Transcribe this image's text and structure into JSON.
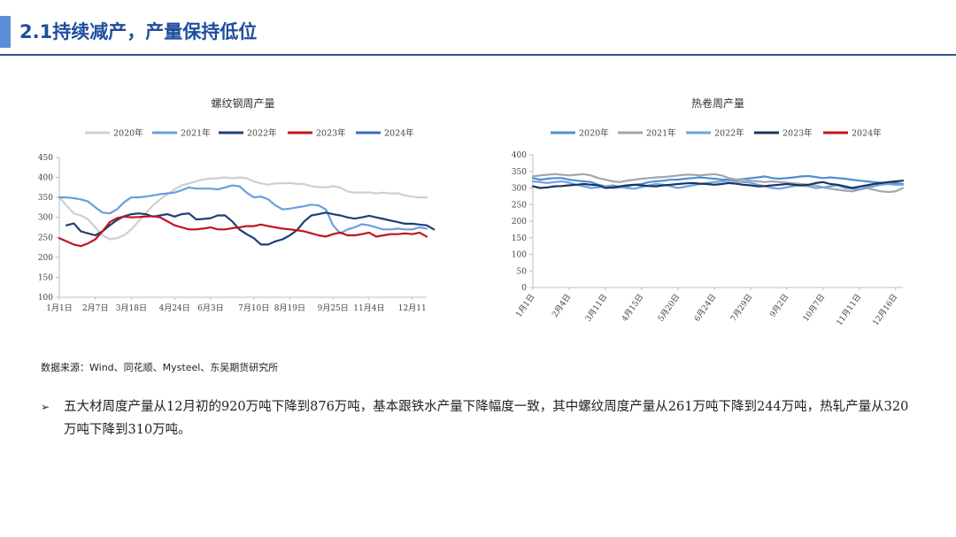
{
  "slide": {
    "title": "2.1持续减产，产量保持低位",
    "source": "数据来源：Wind、同花顺、Mysteel、东吴期货研究所",
    "bullet_mark": "➢",
    "bullet": "五大材周度产量从12月初的920万吨下降到876万吨，基本跟铁水产量下降幅度一致，其中螺纹周度产量从261万吨下降到244万吨，热轧产量从320万吨下降到310万吨。"
  },
  "chart_data": [
    {
      "type": "line",
      "title": "螺纹钢周产量",
      "xlabel": "",
      "ylabel": "",
      "ylim": [
        100,
        450
      ],
      "yticks": [
        100,
        150,
        200,
        250,
        300,
        350,
        400,
        450
      ],
      "xlim": [
        1,
        52
      ],
      "x_ticks": [
        {
          "label": "1月1日",
          "week": 1
        },
        {
          "label": "2月7日",
          "week": 6
        },
        {
          "label": "3月18日",
          "week": 11
        },
        {
          "label": "4月24日",
          "week": 17
        },
        {
          "label": "6月3日",
          "week": 22
        },
        {
          "label": "7月10日",
          "week": 28
        },
        {
          "label": "8月19日",
          "week": 33
        },
        {
          "label": "9月25日",
          "week": 39
        },
        {
          "label": "11月4日",
          "week": 44
        },
        {
          "label": "12月11",
          "week": 50
        }
      ],
      "legend": [
        "2020年",
        "2021年",
        "2022年",
        "2023年",
        "2024年"
      ],
      "series": [
        {
          "name": "2020年",
          "color": "#cfcfcf",
          "start_week": 1,
          "values": [
            350,
            330,
            310,
            305,
            295,
            275,
            255,
            245,
            248,
            255,
            270,
            290,
            310,
            330,
            345,
            358,
            370,
            380,
            385,
            390,
            395,
            397,
            398,
            400,
            398,
            400,
            398,
            390,
            385,
            382,
            385,
            385,
            386,
            384,
            383,
            378,
            376,
            375,
            378,
            375,
            365,
            362,
            362,
            363,
            360,
            362,
            360,
            360,
            355,
            352,
            350,
            350
          ]
        },
        {
          "name": "2021年",
          "color": "#6a9ee0",
          "start_week": 1,
          "values": [
            350,
            350,
            348,
            345,
            340,
            325,
            312,
            310,
            320,
            338,
            350,
            350,
            352,
            355,
            358,
            360,
            362,
            368,
            375,
            372,
            372,
            372,
            370,
            375,
            380,
            378,
            362,
            350,
            352,
            345,
            330,
            320,
            322,
            325,
            328,
            332,
            330,
            320,
            280,
            260,
            270,
            275,
            283,
            280,
            275,
            270,
            270,
            272,
            270,
            270,
            275,
            272
          ]
        },
        {
          "name": "2022年",
          "color": "#1f3f73",
          "start_week": 2,
          "values": [
            280,
            285,
            265,
            260,
            255,
            265,
            280,
            293,
            303,
            308,
            310,
            308,
            302,
            305,
            308,
            302,
            308,
            310,
            295,
            296,
            298,
            305,
            305,
            290,
            270,
            258,
            248,
            232,
            232,
            240,
            245,
            255,
            268,
            290,
            305,
            308,
            312,
            308,
            305,
            300,
            297,
            300,
            304,
            300,
            296,
            292,
            288,
            284,
            284,
            282,
            280,
            270
          ]
        },
        {
          "name": "2023年",
          "color": "#c0141c",
          "start_week": 1,
          "values": [
            248,
            240,
            232,
            228,
            235,
            245,
            265,
            288,
            298,
            302,
            300,
            301,
            302,
            303,
            300,
            290,
            280,
            275,
            270,
            270,
            272,
            275,
            270,
            270,
            273,
            275,
            278,
            278,
            282,
            278,
            275,
            272,
            270,
            268,
            265,
            260,
            255,
            252,
            258,
            262,
            255,
            255,
            258,
            262,
            252,
            255,
            258,
            258,
            260,
            258,
            262,
            252
          ]
        },
        {
          "name": "2024年",
          "color": "#3a6cbf",
          "start_week": 1,
          "values": []
        }
      ]
    },
    {
      "type": "line",
      "title": "热卷周产量",
      "xlabel": "",
      "ylabel": "",
      "ylim": [
        0,
        400
      ],
      "yticks": [
        0,
        50,
        100,
        150,
        200,
        250,
        300,
        350,
        400
      ],
      "xlim": [
        1,
        52
      ],
      "x_ticks": [
        {
          "label": "1月1日",
          "week": 1
        },
        {
          "label": "2月4日",
          "week": 6
        },
        {
          "label": "3月11日",
          "week": 11
        },
        {
          "label": "4月15日",
          "week": 16
        },
        {
          "label": "5月20日",
          "week": 21
        },
        {
          "label": "6月24日",
          "week": 26
        },
        {
          "label": "7月29日",
          "week": 31
        },
        {
          "label": "9月2日",
          "week": 36
        },
        {
          "label": "10月7日",
          "week": 41
        },
        {
          "label": "11月11日",
          "week": 46
        },
        {
          "label": "12月16日",
          "week": 51
        }
      ],
      "legend": [
        "2020年",
        "2021年",
        "2022年",
        "2023年",
        "2024年"
      ],
      "series": [
        {
          "name": "2020年",
          "color": "#4f8fd6",
          "start_week": 1,
          "values": [
            330,
            325,
            328,
            330,
            330,
            325,
            322,
            320,
            318,
            310,
            305,
            300,
            302,
            305,
            310,
            312,
            318,
            320,
            322,
            325,
            325,
            328,
            330,
            332,
            330,
            328,
            326,
            325,
            325,
            327,
            330,
            332,
            335,
            330,
            328,
            330,
            332,
            335,
            336,
            333,
            330,
            332,
            330,
            328,
            325,
            322,
            320,
            318,
            316,
            315,
            315,
            312
          ]
        },
        {
          "name": "2021年",
          "color": "#a6a6a6",
          "start_week": 1,
          "values": [
            335,
            338,
            340,
            342,
            340,
            338,
            340,
            342,
            338,
            330,
            325,
            320,
            318,
            322,
            325,
            328,
            330,
            332,
            333,
            335,
            338,
            340,
            340,
            338,
            340,
            342,
            338,
            330,
            326,
            325,
            322,
            320,
            318,
            320,
            318,
            316,
            314,
            312,
            310,
            308,
            302,
            298,
            295,
            292,
            290,
            295,
            300,
            295,
            290,
            288,
            290,
            300
          ]
        },
        {
          "name": "2022年",
          "color": "#6fa2e3",
          "start_week": 1,
          "values": [
            320,
            318,
            315,
            318,
            320,
            316,
            310,
            305,
            300,
            302,
            305,
            308,
            303,
            300,
            298,
            303,
            308,
            312,
            310,
            305,
            300,
            304,
            308,
            312,
            315,
            318,
            320,
            322,
            320,
            318,
            316,
            310,
            305,
            300,
            298,
            302,
            306,
            308,
            305,
            300,
            302,
            305,
            308,
            300,
            298,
            296,
            302,
            305,
            310,
            312,
            310,
            310
          ]
        },
        {
          "name": "2023年",
          "color": "#1c355e",
          "start_week": 1,
          "values": [
            305,
            300,
            302,
            305,
            306,
            308,
            310,
            312,
            310,
            308,
            300,
            302,
            305,
            308,
            310,
            308,
            306,
            305,
            308,
            310,
            312,
            314,
            315,
            313,
            312,
            310,
            312,
            315,
            313,
            310,
            308,
            305,
            306,
            308,
            310,
            312,
            310,
            308,
            310,
            315,
            318,
            312,
            310,
            305,
            300,
            304,
            308,
            312,
            315,
            318,
            320,
            322
          ]
        },
        {
          "name": "2024年",
          "color": "#c0141c",
          "start_week": 1,
          "values": []
        }
      ]
    }
  ]
}
